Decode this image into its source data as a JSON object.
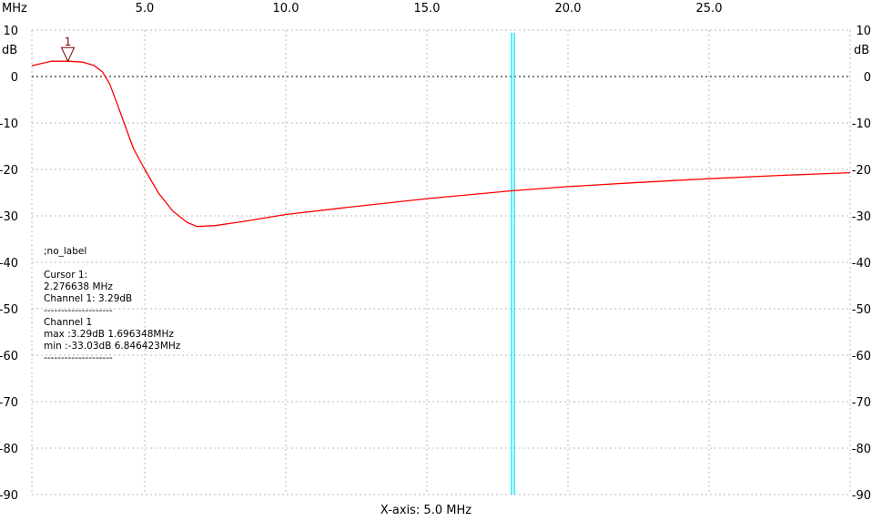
{
  "chart_data": {
    "type": "line",
    "x_unit_label": "MHz",
    "y_unit_label": "dB",
    "xlim": [
      1.0,
      30.0
    ],
    "ylim": [
      -90,
      10
    ],
    "x_ticks": [
      5.0,
      10.0,
      15.0,
      20.0,
      25.0
    ],
    "x_tick_labels": [
      "5.0",
      "10.0",
      "15.0",
      "20.0",
      "25.0"
    ],
    "y_ticks": [
      10,
      0,
      -10,
      -20,
      -30,
      -40,
      -50,
      -60,
      -70,
      -80,
      -90
    ],
    "y_tick_labels": [
      "10",
      "0",
      "-10",
      "-20",
      "-30",
      "-40",
      "-50",
      "-60",
      "-70",
      "-80",
      "-90"
    ],
    "grid": true,
    "xlabel": "X-axis: 5.0 MHz",
    "series": [
      {
        "color": "#ff0000",
        "x": [
          1.0,
          1.4,
          1.7,
          2.28,
          2.8,
          3.2,
          3.5,
          3.75,
          4.0,
          4.3,
          4.6,
          5.0,
          5.5,
          6.0,
          6.5,
          6.85,
          7.5,
          8.5,
          10.0,
          12.0,
          15.0,
          18.0,
          20.0,
          22.5,
          25.0,
          27.5,
          30.0
        ],
        "y": [
          2.3,
          2.9,
          3.29,
          3.29,
          3.1,
          2.4,
          1.0,
          -1.5,
          -5.5,
          -10.5,
          -15.5,
          -20.0,
          -25.2,
          -29.0,
          -31.4,
          -32.3,
          -32.1,
          -31.2,
          -29.7,
          -28.3,
          -26.3,
          -24.6,
          -23.7,
          -22.8,
          -22.0,
          -21.3,
          -20.7
        ]
      }
    ],
    "zero_reference_line": 0,
    "cursor_marker": {
      "label": "1",
      "x": 2.276638,
      "y": 3.29,
      "color": "#800000"
    },
    "cursor_line": {
      "x": 18.05,
      "color": "#00e5ff"
    },
    "info_box": {
      "label": ";no_label",
      "cursor_title": "Cursor 1:",
      "cursor_freq": "2.276638 MHz",
      "cursor_value": "Channel 1: 3.29dB",
      "separator": "--------------------",
      "channel_title": "Channel 1",
      "max": "max :3.29dB 1.696348MHz",
      "min": "min :-33.03dB 6.846423MHz"
    }
  }
}
